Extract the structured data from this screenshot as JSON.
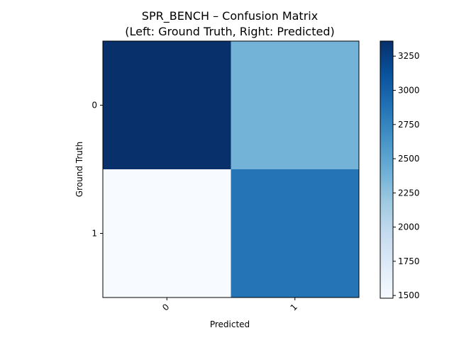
{
  "chart_data": {
    "type": "heatmap",
    "title": "SPR_BENCH – Confusion Matrix",
    "subtitle": "(Left: Ground Truth, Right: Predicted)",
    "xlabel": "Predicted",
    "ylabel": "Ground Truth",
    "x_categories": [
      "0",
      "1"
    ],
    "y_categories": [
      "0",
      "1"
    ],
    "matrix": [
      [
        3360,
        2380
      ],
      [
        1480,
        2870
      ]
    ],
    "colormap": "Blues",
    "color_range": [
      1480,
      3360
    ],
    "colorbar_ticks": [
      "1500",
      "1750",
      "2000",
      "2250",
      "2500",
      "2750",
      "3000",
      "3250"
    ]
  }
}
